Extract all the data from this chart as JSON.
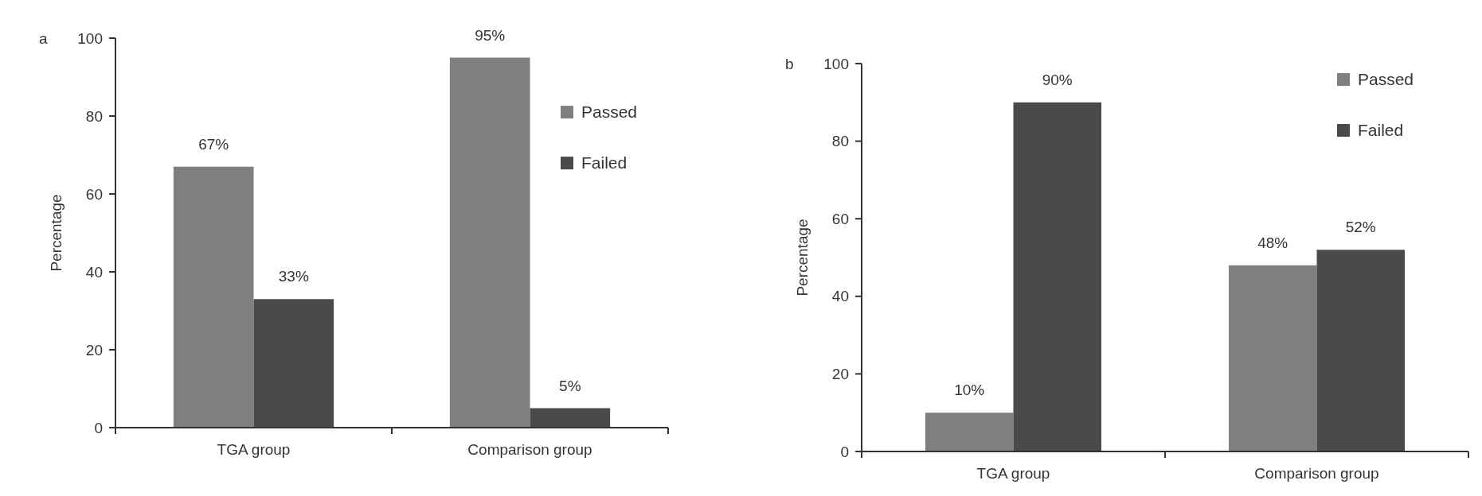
{
  "chart_data": [
    {
      "type": "bar",
      "annotations": [
        "a"
      ],
      "ylabel": "Percentage",
      "categories": [
        "TGA group",
        "Comparison group"
      ],
      "ylim": [
        0,
        100
      ],
      "yticks": [
        0,
        20,
        40,
        60,
        80,
        100
      ],
      "grid": false,
      "legend": "right",
      "series": [
        {
          "name": "Passed",
          "color": "#7f7f82",
          "values": [
            67,
            95
          ],
          "value_labels": [
            "67%",
            "95%"
          ]
        },
        {
          "name": "Failed",
          "color": "#4a4a4c",
          "values": [
            33,
            5
          ],
          "value_labels": [
            "33%",
            "5%"
          ]
        }
      ]
    },
    {
      "type": "bar",
      "annotations": [
        "b"
      ],
      "ylabel": "Percentage",
      "categories": [
        "TGA group",
        "Comparison group"
      ],
      "ylim": [
        0,
        100
      ],
      "yticks": [
        0,
        20,
        40,
        60,
        80,
        100
      ],
      "grid": false,
      "legend": "top right",
      "series": [
        {
          "name": "Passed",
          "color": "#7f7f82",
          "values": [
            10,
            48
          ],
          "value_labels": [
            "10%",
            "48%"
          ]
        },
        {
          "name": "Failed",
          "color": "#4a4a4c",
          "values": [
            90,
            52
          ],
          "value_labels": [
            "90%",
            "52%"
          ]
        }
      ]
    }
  ]
}
